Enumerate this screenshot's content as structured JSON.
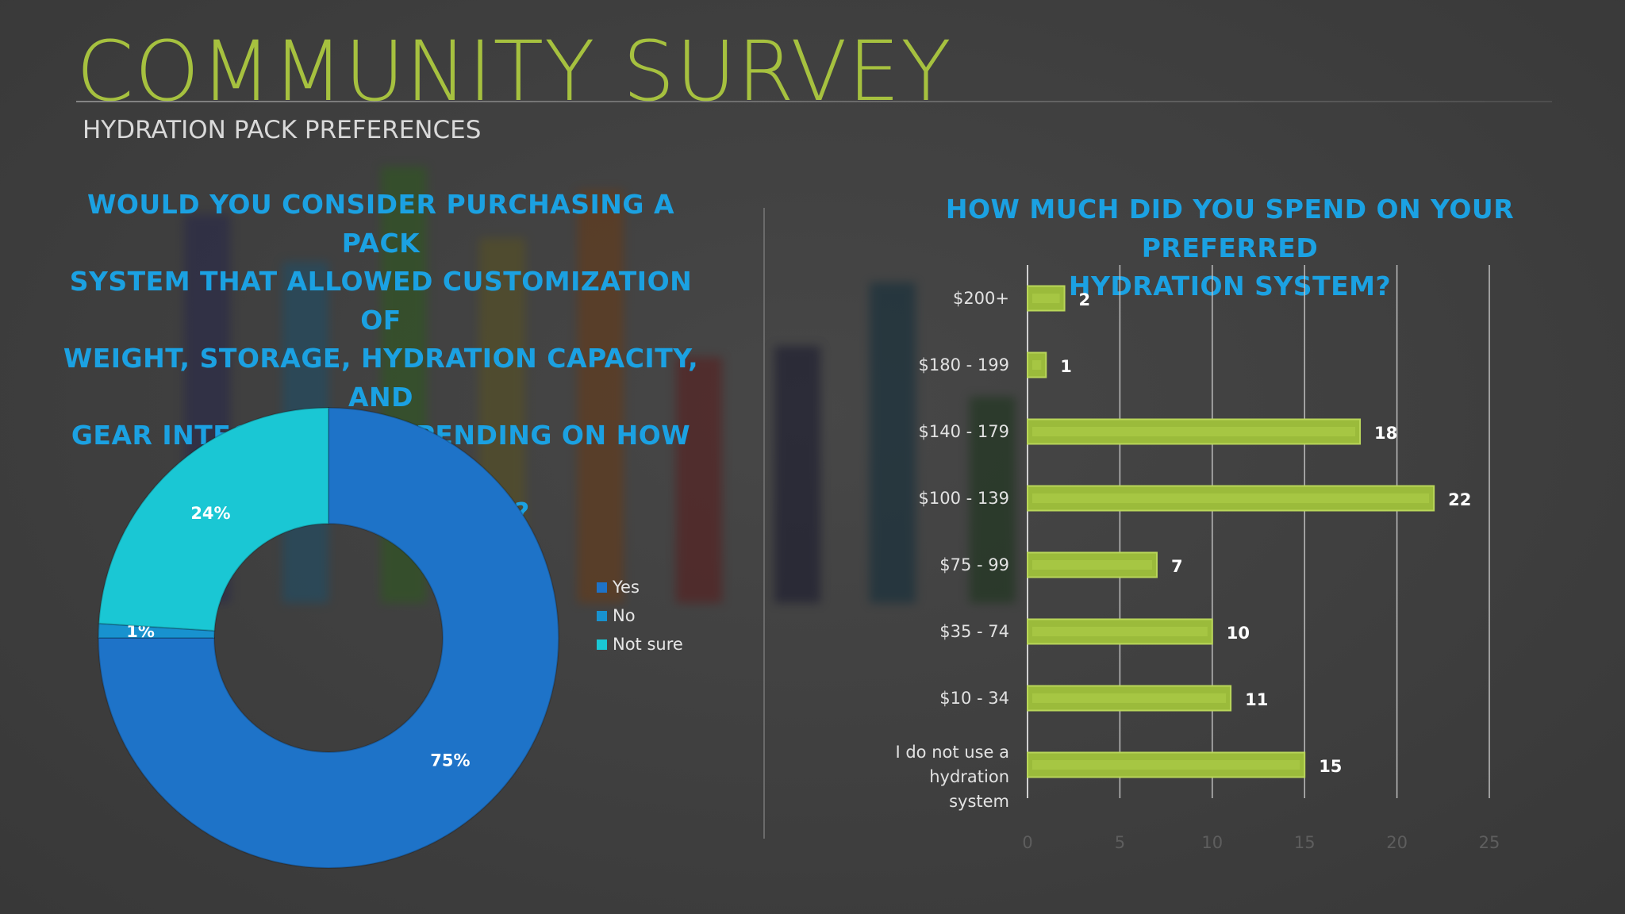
{
  "slide": {
    "title": "COMMUNITY SURVEY",
    "subtitle": "HYDRATION PACK PREFERENCES"
  },
  "colors": {
    "title": "#a6c13f",
    "question": "#1ba1e2",
    "bar": "#9bbb3b",
    "yes": "#1e73c8",
    "no": "#1892cf",
    "not_sure": "#1ac7d4"
  },
  "chart_data": [
    {
      "type": "pie",
      "variant": "donut",
      "title": "WOULD YOU CONSIDER PURCHASING A PACK SYSTEM THAT ALLOWED CUSTOMIZATION OF WEIGHT, STORAGE, HYDRATION CAPACITY, AND GEAR INTEGRATION DEPENDING ON HOW FAR YOU ARE RUNNING?",
      "title_lines": [
        "WOULD YOU CONSIDER PURCHASING A PACK",
        "SYSTEM THAT ALLOWED CUSTOMIZATION OF",
        "WEIGHT, STORAGE, HYDRATION CAPACITY, AND",
        "GEAR INTEGRATION DEPENDING ON HOW FAR",
        "YOU ARE RUNNING?"
      ],
      "categories": [
        "Yes",
        "No",
        "Not sure"
      ],
      "values": [
        75,
        1,
        24
      ],
      "labels": [
        "75%",
        "1%",
        "24%"
      ],
      "legend": "right"
    },
    {
      "type": "bar",
      "orientation": "horizontal",
      "title": "HOW MUCH DID YOU SPEND ON YOUR PREFERRED HYDRATION SYSTEM?",
      "title_lines": [
        "HOW MUCH DID YOU SPEND ON YOUR PREFERRED",
        "HYDRATION SYSTEM?"
      ],
      "categories": [
        "$200+",
        "$180 - 199",
        "$140 - 179",
        "$100 - 139",
        "$75 - 99",
        "$35 - 74",
        "$10 - 34",
        "I do not use a hydration system"
      ],
      "category_lines": [
        [
          "$200+"
        ],
        [
          "$180 - 199"
        ],
        [
          "$140 - 179"
        ],
        [
          "$100 - 139"
        ],
        [
          "$75 - 99"
        ],
        [
          "$35 - 74"
        ],
        [
          "$10 - 34"
        ],
        [
          "I do not use a hydration",
          "system"
        ]
      ],
      "values": [
        2,
        1,
        18,
        22,
        7,
        10,
        11,
        15
      ],
      "xlim": [
        0,
        25
      ],
      "xticks": [
        0,
        5,
        10,
        15,
        20,
        25
      ],
      "grid": true,
      "legend": "none"
    }
  ]
}
